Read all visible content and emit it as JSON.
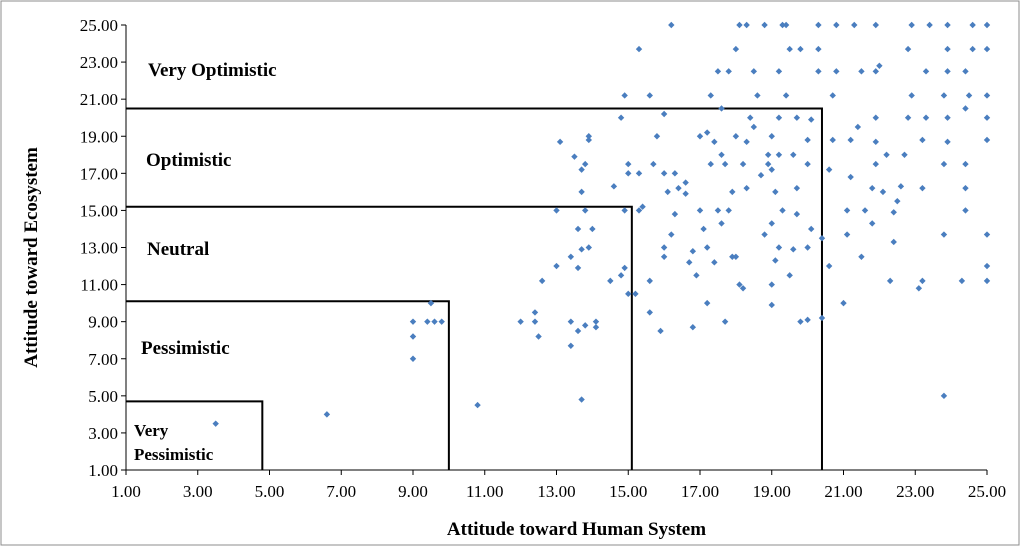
{
  "chart_data": {
    "type": "scatter",
    "xlabel": "Attitude toward Human System",
    "ylabel": "Attitude toward Ecosystem",
    "xlim": [
      1,
      25
    ],
    "ylim": [
      1,
      25
    ],
    "xticks": [
      "1.00",
      "3.00",
      "5.00",
      "7.00",
      "9.00",
      "11.00",
      "13.00",
      "15.00",
      "17.00",
      "19.00",
      "21.00",
      "23.00",
      "25.00"
    ],
    "yticks": [
      "1.00",
      "3.00",
      "5.00",
      "7.00",
      "9.00",
      "11.00",
      "13.00",
      "15.00",
      "17.00",
      "19.00",
      "21.00",
      "23.00",
      "25.00"
    ],
    "grid": false,
    "marker_color": "#4a7ebf",
    "zones": [
      {
        "label": "Very Optimistic",
        "x_max": 25,
        "y_max": 25
      },
      {
        "label": "Optimistic",
        "x_max": 20.4,
        "y_max": 20.5
      },
      {
        "label": "Neutral",
        "x_max": 15.1,
        "y_max": 15.2
      },
      {
        "label": "Pessimistic",
        "x_max": 10,
        "y_max": 10.1
      },
      {
        "label_lines": [
          "Very",
          "Pessimistic"
        ],
        "x_max": 4.8,
        "y_max": 4.7
      }
    ],
    "points": [
      [
        3.5,
        3.5
      ],
      [
        6.6,
        4.0
      ],
      [
        10.8,
        4.5
      ],
      [
        13.7,
        4.8
      ],
      [
        23.8,
        5.0
      ],
      [
        9.0,
        7.0
      ],
      [
        9.0,
        8.2
      ],
      [
        9.0,
        9.0
      ],
      [
        9.4,
        9.0
      ],
      [
        9.6,
        9.0
      ],
      [
        9.8,
        9.0
      ],
      [
        9.5,
        10.0
      ],
      [
        12.0,
        9.0
      ],
      [
        12.4,
        9.0
      ],
      [
        12.4,
        9.5
      ],
      [
        12.5,
        8.2
      ],
      [
        13.4,
        7.7
      ],
      [
        13.4,
        9.0
      ],
      [
        13.6,
        8.5
      ],
      [
        13.8,
        8.8
      ],
      [
        14.1,
        9.0
      ],
      [
        14.1,
        8.7
      ],
      [
        12.6,
        11.2
      ],
      [
        13.0,
        12.0
      ],
      [
        13.4,
        12.5
      ],
      [
        13.6,
        11.9
      ],
      [
        13.7,
        12.9
      ],
      [
        13.9,
        13.0
      ],
      [
        14.0,
        14.0
      ],
      [
        13.6,
        14.0
      ],
      [
        13.0,
        15.0
      ],
      [
        13.8,
        15.0
      ],
      [
        13.7,
        16.0
      ],
      [
        13.7,
        17.2
      ],
      [
        13.8,
        17.5
      ],
      [
        13.1,
        18.7
      ],
      [
        13.5,
        17.9
      ],
      [
        13.9,
        18.8
      ],
      [
        13.9,
        19.0
      ],
      [
        14.5,
        11.2
      ],
      [
        14.8,
        11.5
      ],
      [
        14.9,
        11.9
      ],
      [
        14.6,
        16.3
      ],
      [
        14.9,
        15.0
      ],
      [
        15.0,
        17.0
      ],
      [
        15.0,
        17.5
      ],
      [
        15.0,
        10.5
      ],
      [
        15.2,
        10.5
      ],
      [
        15.3,
        15.0
      ],
      [
        15.4,
        15.2
      ],
      [
        15.3,
        17.0
      ],
      [
        15.6,
        9.5
      ],
      [
        15.6,
        11.2
      ],
      [
        15.7,
        17.5
      ],
      [
        15.9,
        8.5
      ],
      [
        15.8,
        19.0
      ],
      [
        14.8,
        20.0
      ],
      [
        14.9,
        21.2
      ],
      [
        15.6,
        21.2
      ],
      [
        16.0,
        20.2
      ],
      [
        15.3,
        23.7
      ],
      [
        16.2,
        25.0
      ],
      [
        16.0,
        12.5
      ],
      [
        16.0,
        13.0
      ],
      [
        16.2,
        13.7
      ],
      [
        16.3,
        14.8
      ],
      [
        16.1,
        16.0
      ],
      [
        16.0,
        17.0
      ],
      [
        16.3,
        17.0
      ],
      [
        16.4,
        16.2
      ],
      [
        16.6,
        16.5
      ],
      [
        16.6,
        15.9
      ],
      [
        16.7,
        12.2
      ],
      [
        16.8,
        12.8
      ],
      [
        16.9,
        11.5
      ],
      [
        16.8,
        8.7
      ],
      [
        17.0,
        15.0
      ],
      [
        17.1,
        14.0
      ],
      [
        17.2,
        13.0
      ],
      [
        17.0,
        19.0
      ],
      [
        17.2,
        19.2
      ],
      [
        17.4,
        18.7
      ],
      [
        17.2,
        10.0
      ],
      [
        17.4,
        12.2
      ],
      [
        17.5,
        15.0
      ],
      [
        17.6,
        14.3
      ],
      [
        17.6,
        18.0
      ],
      [
        17.3,
        17.5
      ],
      [
        17.3,
        21.2
      ],
      [
        17.7,
        9.0
      ],
      [
        17.8,
        15.0
      ],
      [
        17.9,
        16.0
      ],
      [
        17.7,
        17.5
      ],
      [
        17.9,
        12.5
      ],
      [
        18.1,
        11.0
      ],
      [
        18.2,
        10.8
      ],
      [
        18.0,
        12.5
      ],
      [
        18.0,
        19.0
      ],
      [
        17.8,
        22.5
      ],
      [
        18.0,
        23.7
      ],
      [
        18.1,
        25.0
      ],
      [
        18.3,
        25.0
      ],
      [
        17.6,
        20.5
      ],
      [
        17.5,
        22.5
      ],
      [
        18.3,
        16.2
      ],
      [
        18.2,
        17.5
      ],
      [
        18.3,
        18.7
      ],
      [
        18.5,
        19.5
      ],
      [
        18.4,
        20.0
      ],
      [
        18.5,
        22.5
      ],
      [
        18.6,
        21.2
      ],
      [
        18.8,
        13.7
      ],
      [
        18.7,
        16.9
      ],
      [
        18.9,
        17.5
      ],
      [
        18.9,
        18.0
      ],
      [
        19.0,
        9.9
      ],
      [
        19.0,
        11.0
      ],
      [
        19.1,
        12.3
      ],
      [
        19.2,
        13.0
      ],
      [
        19.0,
        14.3
      ],
      [
        19.3,
        15.0
      ],
      [
        19.1,
        16.0
      ],
      [
        19.0,
        17.2
      ],
      [
        19.2,
        18.0
      ],
      [
        19.0,
        19.0
      ],
      [
        19.2,
        20.0
      ],
      [
        19.4,
        21.2
      ],
      [
        19.2,
        22.5
      ],
      [
        19.3,
        25.0
      ],
      [
        19.4,
        25.0
      ],
      [
        18.8,
        25.0
      ],
      [
        19.5,
        23.7
      ],
      [
        19.8,
        23.7
      ],
      [
        19.7,
        20.0
      ],
      [
        19.6,
        18.0
      ],
      [
        19.7,
        16.2
      ],
      [
        19.7,
        14.8
      ],
      [
        19.6,
        12.9
      ],
      [
        19.5,
        11.5
      ],
      [
        19.8,
        9.0
      ],
      [
        20.0,
        9.1
      ],
      [
        20.0,
        13.0
      ],
      [
        20.1,
        14.0
      ],
      [
        20.0,
        17.5
      ],
      [
        20.0,
        18.8
      ],
      [
        20.1,
        19.9
      ],
      [
        20.3,
        22.5
      ],
      [
        20.3,
        23.7
      ],
      [
        20.3,
        25.0
      ],
      [
        20.4,
        9.2
      ],
      [
        20.4,
        13.5
      ],
      [
        20.6,
        12.0
      ],
      [
        20.6,
        17.2
      ],
      [
        20.7,
        18.8
      ],
      [
        20.7,
        21.2
      ],
      [
        20.8,
        22.5
      ],
      [
        20.8,
        25.0
      ],
      [
        21.0,
        10.0
      ],
      [
        21.1,
        13.7
      ],
      [
        21.1,
        15.0
      ],
      [
        21.2,
        16.8
      ],
      [
        21.2,
        18.8
      ],
      [
        21.3,
        25.0
      ],
      [
        21.5,
        22.5
      ],
      [
        21.4,
        19.5
      ],
      [
        21.5,
        12.5
      ],
      [
        21.6,
        15.0
      ],
      [
        21.8,
        14.3
      ],
      [
        21.8,
        16.2
      ],
      [
        21.9,
        17.5
      ],
      [
        21.9,
        18.7
      ],
      [
        21.9,
        20.0
      ],
      [
        21.9,
        22.5
      ],
      [
        21.9,
        25.0
      ],
      [
        22.0,
        22.8
      ],
      [
        22.1,
        16.0
      ],
      [
        22.2,
        18.0
      ],
      [
        22.3,
        11.2
      ],
      [
        22.4,
        13.3
      ],
      [
        22.4,
        14.9
      ],
      [
        22.5,
        15.5
      ],
      [
        22.6,
        16.3
      ],
      [
        22.7,
        18.0
      ],
      [
        22.8,
        20.0
      ],
      [
        22.9,
        21.2
      ],
      [
        22.8,
        23.7
      ],
      [
        22.9,
        25.0
      ],
      [
        23.1,
        10.8
      ],
      [
        23.2,
        11.2
      ],
      [
        23.2,
        16.2
      ],
      [
        23.2,
        18.8
      ],
      [
        23.3,
        20.0
      ],
      [
        23.3,
        22.5
      ],
      [
        23.4,
        25.0
      ],
      [
        23.8,
        13.7
      ],
      [
        23.8,
        17.5
      ],
      [
        23.9,
        18.7
      ],
      [
        23.9,
        20.0
      ],
      [
        23.8,
        21.2
      ],
      [
        23.9,
        22.5
      ],
      [
        23.9,
        23.7
      ],
      [
        23.9,
        25.0
      ],
      [
        24.3,
        11.2
      ],
      [
        24.4,
        15.0
      ],
      [
        24.4,
        16.2
      ],
      [
        24.4,
        17.5
      ],
      [
        24.4,
        20.5
      ],
      [
        24.5,
        21.2
      ],
      [
        24.4,
        22.5
      ],
      [
        24.6,
        23.7
      ],
      [
        24.6,
        25.0
      ],
      [
        25.0,
        11.2
      ],
      [
        25.0,
        12.0
      ],
      [
        25.0,
        13.7
      ],
      [
        25.0,
        18.8
      ],
      [
        25.0,
        20.0
      ],
      [
        25.0,
        21.2
      ],
      [
        25.0,
        23.7
      ],
      [
        25.0,
        25.0
      ]
    ]
  }
}
